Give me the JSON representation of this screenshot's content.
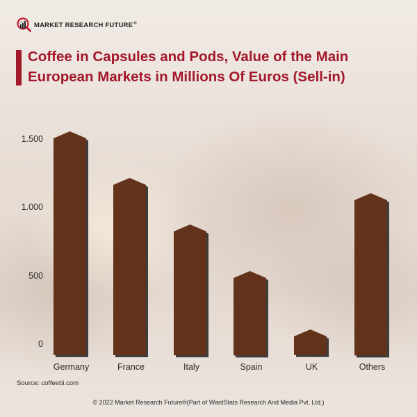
{
  "header": {
    "logo_text": "MARKET RESEARCH FUTURE",
    "logo_reg": "®",
    "title": "Coffee in Capsules and Pods, Value of the Main European Markets in Millions Of Euros (Sell-in)"
  },
  "colors": {
    "title": "#a3182a",
    "bar": "#62321a",
    "bar_shadow": "#3d3d3d"
  },
  "chart_data": {
    "type": "bar",
    "title": "Coffee in Capsules and Pods, Value of the Main European Markets in Millions Of Euros (Sell-in)",
    "xlabel": "",
    "ylabel": "Millions of Euros",
    "categories": [
      "Germany",
      "France",
      "Italy",
      "Spain",
      "UK",
      "Others"
    ],
    "values": [
      1510,
      1170,
      830,
      490,
      60,
      1060
    ],
    "ylim": [
      0,
      1500
    ],
    "yticks": [
      "0",
      "500",
      "1.000",
      "1.500"
    ],
    "grid": false,
    "legend": null
  },
  "footer": {
    "source": "Source: coffeebi.com",
    "copyright": "© 2022 Market Research Future®(Part of WantStats Research And Media Pvt. Ltd.)"
  }
}
